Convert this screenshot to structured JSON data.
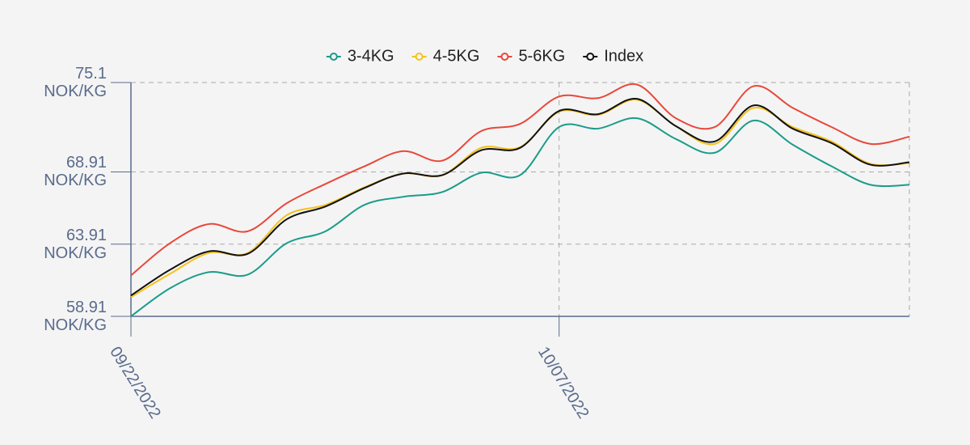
{
  "chart_data": {
    "type": "line",
    "categories": [
      "09/22/2022",
      null,
      null,
      null,
      null,
      null,
      null,
      null,
      null,
      null,
      null,
      "10/07/2022",
      null,
      null,
      null,
      null,
      null,
      null,
      null,
      null,
      null
    ],
    "series": [
      {
        "name": "3-4KG",
        "color": "#1a9c8a",
        "values": [
          58.91,
          60.85,
          61.97,
          61.8,
          63.97,
          64.8,
          66.63,
          67.19,
          67.52,
          68.85,
          68.69,
          72.02,
          71.91,
          72.63,
          71.19,
          70.24,
          72.47,
          70.8,
          69.3,
          68.02,
          68.02
        ]
      },
      {
        "name": "4-5KG",
        "color": "#f5c21b",
        "values": [
          60.24,
          61.85,
          63.3,
          63.3,
          65.91,
          66.63,
          67.85,
          68.8,
          68.69,
          70.58,
          70.63,
          73.08,
          72.86,
          73.91,
          72.08,
          70.85,
          73.35,
          72.02,
          71.02,
          69.47,
          69.52
        ]
      },
      {
        "name": "5-6KG",
        "color": "#e8483a",
        "values": [
          61.74,
          63.97,
          65.3,
          64.8,
          66.74,
          68.08,
          69.3,
          70.35,
          69.69,
          71.74,
          72.24,
          74.13,
          74.02,
          74.96,
          72.63,
          72.02,
          74.85,
          73.35,
          72.02,
          70.85,
          71.35
        ]
      },
      {
        "name": "Index",
        "color": "#111111",
        "values": [
          60.35,
          62.13,
          63.41,
          63.24,
          65.63,
          66.52,
          67.8,
          68.8,
          68.69,
          70.41,
          70.58,
          73.13,
          72.91,
          73.97,
          72.08,
          71.02,
          73.52,
          71.91,
          70.91,
          69.41,
          69.58
        ]
      }
    ],
    "ylim": [
      58.91,
      75.1
    ],
    "yticks": [
      {
        "value": 58.91,
        "label": "58.91 NOK/KG"
      },
      {
        "value": 63.91,
        "label": "63.91 NOK/KG"
      },
      {
        "value": 68.91,
        "label": "68.91 NOK/KG"
      },
      {
        "value": 75.1,
        "label": "75.1 NOK/KG"
      }
    ],
    "grid": true,
    "legend": "top"
  }
}
